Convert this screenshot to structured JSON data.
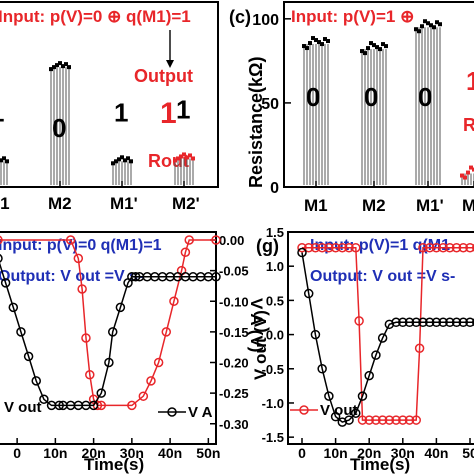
{
  "chart_data": [
    {
      "type": "bar",
      "panel": "b",
      "title": "Input: p(V)=0 ⊕ q(M1)=1",
      "categories": [
        "M1",
        "M2",
        "M1'",
        "M2'"
      ],
      "bar_digits": [
        "1",
        "0",
        "1",
        "1"
      ],
      "values": [
        18,
        84,
        18,
        20
      ],
      "ylim": [
        0,
        110
      ],
      "annotations": {
        "output": "Output",
        "result": "1",
        "rout": "Rout"
      }
    },
    {
      "type": "bar",
      "panel": "c",
      "panel_label": "(c)",
      "title": "Input: p(V)=1 ⊕",
      "ylabel": "Resistance(kΩ)",
      "yticks": [
        "0",
        "50",
        "100"
      ],
      "ylim": [
        0,
        110
      ],
      "categories": [
        "M1",
        "M2",
        "M1'",
        "M"
      ],
      "bar_digits": [
        "0",
        "0",
        "0"
      ],
      "values": [
        85,
        82,
        95,
        8
      ],
      "annotations": {
        "result": "1",
        "rout": "R"
      }
    },
    {
      "type": "line",
      "panel": "f",
      "title": "Input: p(V)=0 q(M1)=1",
      "subtitle": "Output: V out =V s-",
      "xlabel": "Time(s)",
      "xticks": [
        "0",
        "10n",
        "20n",
        "30n",
        "40n",
        "50n"
      ],
      "xlim": [
        -5,
        52
      ],
      "right_ylabel": "V A (V)",
      "right_yticks": [
        "0.00",
        "-0.05",
        "-0.10",
        "-0.15",
        "-0.20",
        "-0.25",
        "-0.30"
      ],
      "right_ylim": [
        -0.32,
        0.0
      ],
      "series": [
        {
          "name": "V out",
          "color": "#e8262a",
          "x": [
            -5,
            14,
            16,
            17,
            18,
            19,
            20,
            21,
            22,
            30,
            33,
            35,
            37,
            39,
            41,
            43,
            44,
            45,
            52
          ],
          "y": [
            0.0,
            0.0,
            -0.03,
            -0.08,
            -0.16,
            -0.22,
            -0.26,
            -0.27,
            -0.27,
            -0.27,
            -0.255,
            -0.23,
            -0.2,
            -0.15,
            -0.1,
            -0.05,
            -0.02,
            0.0,
            0.0
          ]
        },
        {
          "name": "V A",
          "color": "#000000",
          "x": [
            -5,
            -3,
            -1,
            1,
            3,
            5,
            7,
            9,
            11,
            12,
            14,
            16,
            18,
            20,
            22,
            24,
            25,
            27,
            29,
            30,
            31,
            32,
            34,
            36,
            38,
            40,
            42,
            44,
            46,
            48,
            50,
            52
          ],
          "y": [
            -0.03,
            -0.07,
            -0.11,
            -0.15,
            -0.19,
            -0.23,
            -0.26,
            -0.27,
            -0.27,
            -0.27,
            -0.27,
            -0.27,
            -0.27,
            -0.27,
            -0.25,
            -0.2,
            -0.15,
            -0.11,
            -0.07,
            -0.06,
            -0.06,
            -0.06,
            -0.06,
            -0.06,
            -0.06,
            -0.06,
            -0.06,
            -0.06,
            -0.06,
            -0.06,
            -0.06,
            -0.06
          ]
        }
      ]
    },
    {
      "type": "line",
      "panel": "g",
      "panel_label": "(g)",
      "title": "Input: p(V)=1 q(M1",
      "subtitle": "Output: V out =V s-",
      "xlabel": "Time(s)",
      "xticks": [
        "0",
        "10n",
        "20n",
        "30n",
        "40n",
        "50"
      ],
      "xlim": [
        -2,
        52
      ],
      "ylabel": "V out (V)",
      "yticks": [
        "1.5",
        "1.0",
        "0.5",
        "0.0",
        "-0.5",
        "-1.0",
        "-1.5"
      ],
      "ylim": [
        -1.6,
        1.5
      ],
      "series": [
        {
          "name": "V out",
          "color": "#e8262a",
          "x": [
            0,
            2,
            4,
            6,
            8,
            10,
            12,
            14,
            16,
            17,
            18,
            20,
            22,
            24,
            26,
            28,
            30,
            32,
            34,
            35,
            36,
            38,
            40,
            42,
            44,
            46,
            48,
            50,
            52
          ],
          "y": [
            1.27,
            1.27,
            1.27,
            1.27,
            1.27,
            1.27,
            1.27,
            1.27,
            1.27,
            0.2,
            -1.25,
            -1.25,
            -1.25,
            -1.25,
            -1.25,
            -1.25,
            -1.25,
            -1.25,
            -1.25,
            -0.2,
            1.27,
            1.27,
            1.27,
            1.27,
            1.27,
            1.27,
            1.27,
            1.27,
            1.27
          ]
        },
        {
          "name": "V A",
          "color": "#000000",
          "x": [
            0,
            2,
            4,
            6,
            8,
            10,
            12,
            14,
            16,
            18,
            20,
            22,
            24,
            26,
            28,
            30,
            32,
            34,
            36,
            38,
            40,
            42,
            44,
            46,
            48,
            50,
            52
          ],
          "y": [
            1.2,
            0.6,
            0.0,
            -0.5,
            -0.9,
            -1.2,
            -1.28,
            -1.25,
            -1.15,
            -0.9,
            -0.6,
            -0.3,
            -0.05,
            0.15,
            0.18,
            0.18,
            0.18,
            0.18,
            0.18,
            0.18,
            0.18,
            0.18,
            0.18,
            0.18,
            0.18,
            0.18,
            0.18
          ]
        }
      ]
    }
  ]
}
